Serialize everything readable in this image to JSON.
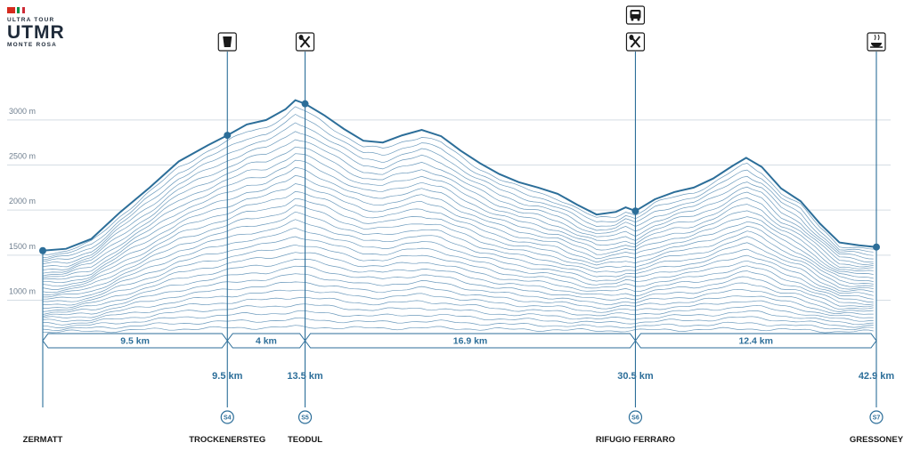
{
  "logo": {
    "line1": "ULTRA TOUR",
    "line2": "UTMR",
    "line3": "MONTE ROSA",
    "flag_colors": [
      "#d52b1e",
      "#009246",
      "#ce2b37"
    ]
  },
  "colors": {
    "line": "#2c6e99",
    "ridge": "#3b78a6",
    "grid": "#d5dde4",
    "fill": "#ffffff"
  },
  "chart_data": {
    "type": "area",
    "xlabel": "",
    "ylabel": "",
    "xlim": [
      0,
      42.9
    ],
    "ylim": [
      600,
      3300
    ],
    "yticks": [
      {
        "value": 1000,
        "label": "1000 m"
      },
      {
        "value": 1500,
        "label": "1500 m"
      },
      {
        "value": 2000,
        "label": "2000 m"
      },
      {
        "value": 2500,
        "label": "2500 m"
      },
      {
        "value": 3000,
        "label": "3000 m"
      }
    ],
    "grid": true,
    "profile": [
      [
        0,
        1550
      ],
      [
        1.2,
        1570
      ],
      [
        2.5,
        1680
      ],
      [
        4.0,
        1980
      ],
      [
        5.5,
        2250
      ],
      [
        7.0,
        2540
      ],
      [
        8.5,
        2720
      ],
      [
        9.5,
        2830
      ],
      [
        10.5,
        2950
      ],
      [
        11.5,
        3000
      ],
      [
        12.5,
        3120
      ],
      [
        13.0,
        3220
      ],
      [
        13.5,
        3180
      ],
      [
        14.5,
        3050
      ],
      [
        15.5,
        2900
      ],
      [
        16.5,
        2770
      ],
      [
        17.5,
        2750
      ],
      [
        18.5,
        2830
      ],
      [
        19.5,
        2890
      ],
      [
        20.5,
        2820
      ],
      [
        21.5,
        2660
      ],
      [
        22.5,
        2520
      ],
      [
        23.5,
        2400
      ],
      [
        24.5,
        2310
      ],
      [
        25.5,
        2250
      ],
      [
        26.5,
        2180
      ],
      [
        27.5,
        2060
      ],
      [
        28.5,
        1950
      ],
      [
        29.5,
        1980
      ],
      [
        30.0,
        2030
      ],
      [
        30.5,
        1990
      ],
      [
        31.5,
        2120
      ],
      [
        32.5,
        2200
      ],
      [
        33.5,
        2250
      ],
      [
        34.5,
        2350
      ],
      [
        35.5,
        2490
      ],
      [
        36.2,
        2580
      ],
      [
        37.0,
        2480
      ],
      [
        38.0,
        2240
      ],
      [
        39.0,
        2100
      ],
      [
        40.0,
        1850
      ],
      [
        41.0,
        1640
      ],
      [
        42.0,
        1610
      ],
      [
        42.9,
        1590
      ]
    ],
    "stops": [
      {
        "id": "",
        "name": "ZERMATT",
        "km": 0,
        "km_label": "",
        "elevation": 1550,
        "icons": []
      },
      {
        "id": "S4",
        "name": "TROCKENERSTEG",
        "km": 9.5,
        "km_label": "9.5 km",
        "elevation": 2830,
        "icons": [
          "drink-icon"
        ]
      },
      {
        "id": "S5",
        "name": "TEODUL",
        "km": 13.5,
        "km_label": "13.5 km",
        "elevation": 3180,
        "icons": [
          "food-icon"
        ]
      },
      {
        "id": "S6",
        "name": "RIFUGIO FERRARO",
        "km": 30.5,
        "km_label": "30.5 km",
        "elevation": 1990,
        "icons": [
          "bus-icon",
          "food-icon"
        ]
      },
      {
        "id": "S7",
        "name": "GRESSONEY",
        "km": 42.9,
        "km_label": "42.9 km",
        "elevation": 1590,
        "icons": [
          "hot-meal-icon"
        ]
      }
    ],
    "segments": [
      {
        "from": 0,
        "to": 9.5,
        "label": "9.5 km"
      },
      {
        "from": 9.5,
        "to": 13.5,
        "label": "4 km"
      },
      {
        "from": 13.5,
        "to": 30.5,
        "label": "16.9 km"
      },
      {
        "from": 30.5,
        "to": 42.9,
        "label": "12.4 km"
      }
    ]
  }
}
